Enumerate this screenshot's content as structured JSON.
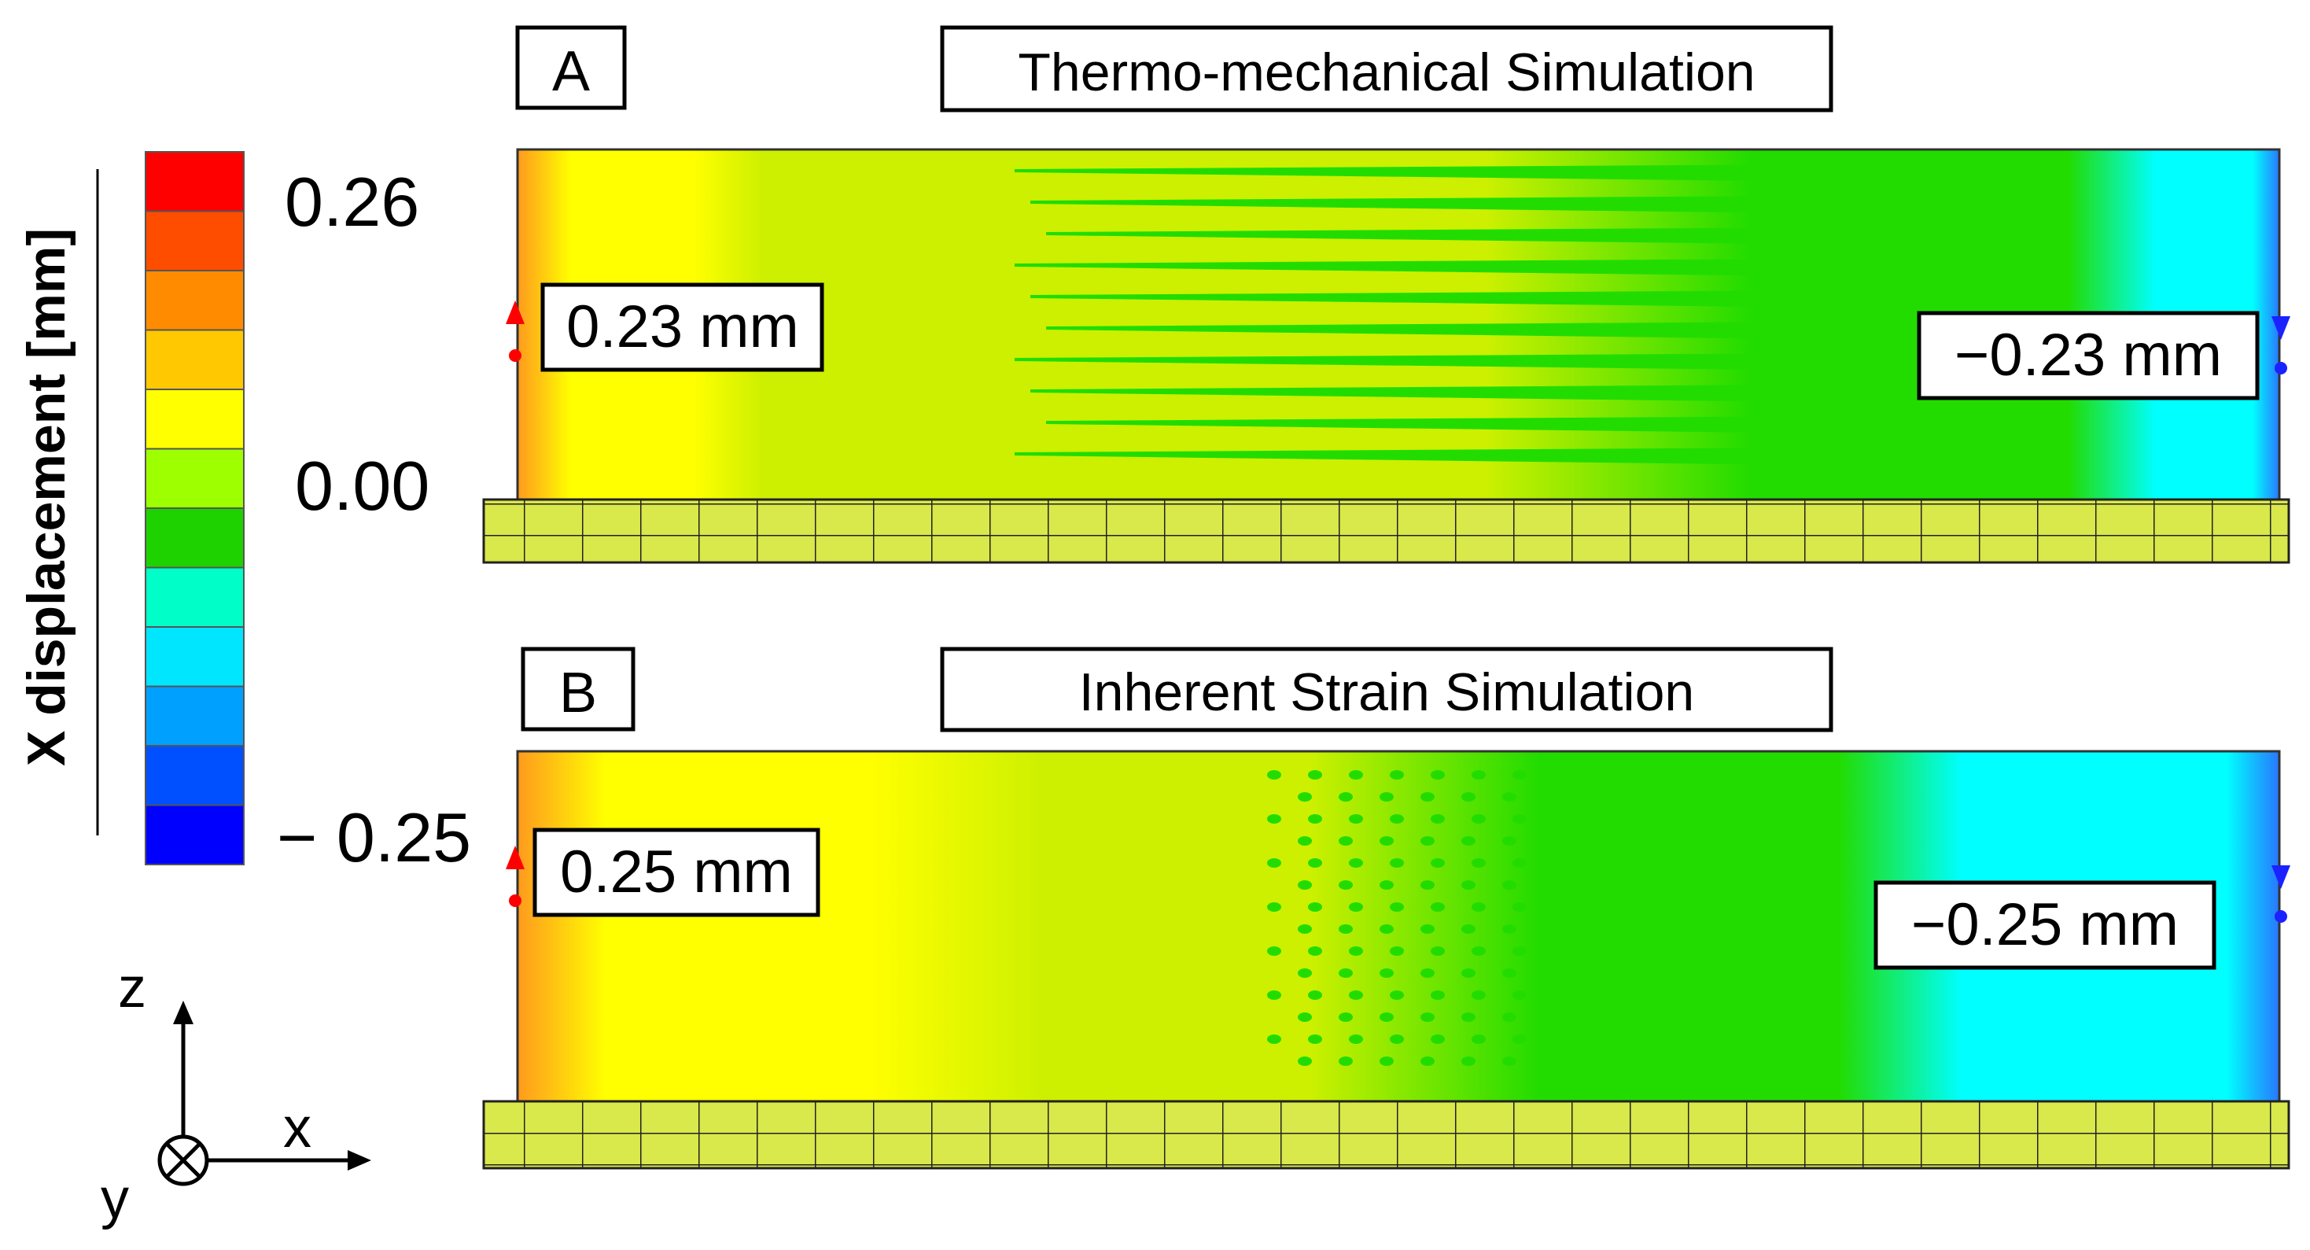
{
  "colorbar": {
    "title": "X displacement [mm]",
    "max_label": "0.26",
    "mid_label": "0.00",
    "min_label": "− 0.25",
    "colors": [
      "#ff0000",
      "#ff4d00",
      "#ff8c00",
      "#ffc800",
      "#ffff00",
      "#9eff00",
      "#1ed200",
      "#00ffc8",
      "#00e6ff",
      "#00a0ff",
      "#0050ff",
      "#0000ff"
    ]
  },
  "axes": {
    "z": "z",
    "x": "x",
    "y": "y"
  },
  "panel_a": {
    "letter": "A",
    "title": "Thermo-mechanical Simulation",
    "left_value": "0.23 mm",
    "right_value": "−0.23 mm"
  },
  "panel_b": {
    "letter": "B",
    "title": "Inherent Strain Simulation",
    "left_value": "0.25 mm",
    "right_value": "−0.25 mm"
  },
  "field_colors": {
    "orange": "#ff9a1e",
    "yellow": "#ffff00",
    "yellow_green": "#ccf000",
    "green": "#22dc00",
    "cyan": "#00ffff",
    "blue": "#2878ff",
    "base_plate": "#d9e84a",
    "marker_red": "#ff0000",
    "marker_blue": "#1a22ff"
  }
}
